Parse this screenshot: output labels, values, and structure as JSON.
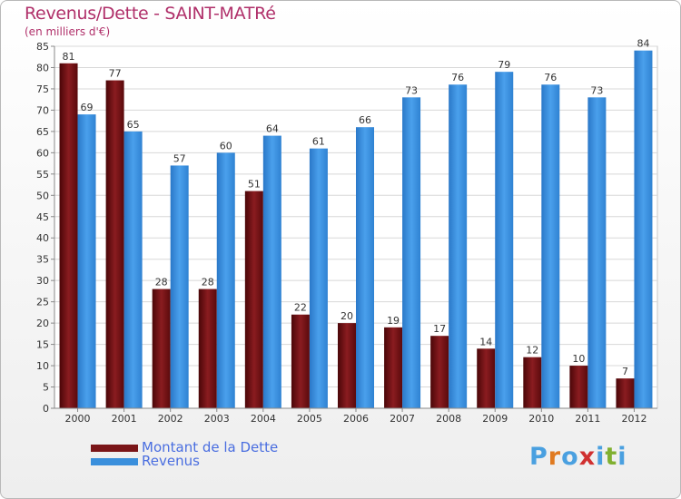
{
  "header": {
    "title": "Revenus/Dette - SAINT-MATRé",
    "subtitle": "(en milliers d'€)"
  },
  "legend": {
    "items": [
      {
        "label": "Montant de la Dette",
        "color": "#7a1518"
      },
      {
        "label": "Revenus",
        "color": "#3a8fdc"
      }
    ]
  },
  "logo": {
    "letters": [
      "P",
      "r",
      "o",
      "x",
      "i",
      "t",
      "i"
    ],
    "colors": [
      "#4aa0e0",
      "#e07a20",
      "#4aa0e0",
      "#d03030",
      "#4aa0e0",
      "#80b030",
      "#4aa0e0"
    ]
  },
  "chart_data": {
    "type": "bar",
    "categories": [
      "2000",
      "2001",
      "2002",
      "2003",
      "2004",
      "2005",
      "2006",
      "2007",
      "2008",
      "2009",
      "2010",
      "2011",
      "2012"
    ],
    "series": [
      {
        "name": "Montant de la Dette",
        "color": "#7a1518",
        "values": [
          81,
          77,
          28,
          28,
          51,
          22,
          20,
          19,
          17,
          14,
          12,
          10,
          7
        ]
      },
      {
        "name": "Revenus",
        "color": "#3a8fdc",
        "values": [
          69,
          65,
          57,
          60,
          64,
          61,
          66,
          73,
          76,
          79,
          76,
          73,
          84
        ]
      }
    ],
    "ylim": [
      0,
      85
    ],
    "yticks": [
      0,
      5,
      10,
      15,
      20,
      25,
      30,
      35,
      40,
      45,
      50,
      55,
      60,
      65,
      70,
      75,
      80,
      85
    ],
    "grid": true,
    "legend_position": "bottom-left"
  }
}
